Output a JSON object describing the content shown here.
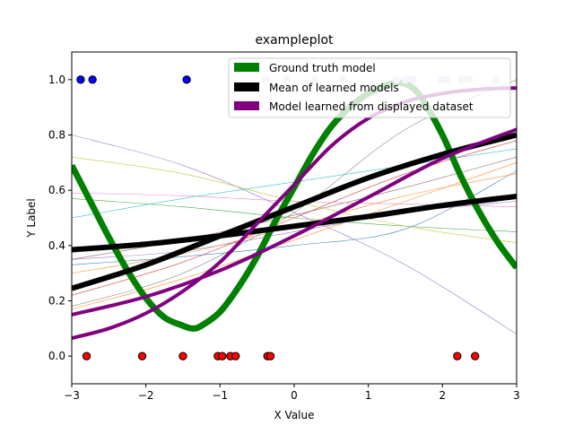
{
  "chart_data": {
    "type": "line",
    "title": "exampleplot",
    "xlabel": "X Value",
    "ylabel": "Y Label",
    "xlim": [
      -3,
      3
    ],
    "ylim": [
      -0.1,
      1.1
    ],
    "xticks": [
      -3,
      -2,
      -1,
      0,
      1,
      2,
      3
    ],
    "yticks": [
      0.0,
      0.2,
      0.4,
      0.6,
      0.8,
      1.0
    ],
    "xtick_labels": [
      "−3",
      "−2",
      "−1",
      "0",
      "1",
      "2",
      "3"
    ],
    "ytick_labels": [
      "0.0",
      "0.2",
      "0.4",
      "0.6",
      "0.8",
      "1.0"
    ],
    "grid": false,
    "legend": {
      "placement": "upper-right",
      "entries": [
        {
          "label": "Ground truth model",
          "color": "#008000"
        },
        {
          "label": "Mean of learned models",
          "color": "#000000"
        },
        {
          "label": "Model learned from displayed dataset",
          "color": "#800080"
        }
      ]
    },
    "ground_truth": {
      "color": "#008000",
      "x": [
        -3.0,
        -2.75,
        -2.5,
        -2.25,
        -2.0,
        -1.75,
        -1.5,
        -1.37,
        -1.25,
        -1.0,
        -0.75,
        -0.5,
        -0.25,
        0.0,
        0.25,
        0.5,
        0.75,
        1.0,
        1.25,
        1.42,
        1.6,
        1.75,
        2.0,
        2.25,
        2.5,
        2.75,
        3.0
      ],
      "y": [
        0.69,
        0.56,
        0.43,
        0.31,
        0.21,
        0.14,
        0.11,
        0.1,
        0.11,
        0.16,
        0.25,
        0.36,
        0.49,
        0.61,
        0.73,
        0.83,
        0.9,
        0.95,
        0.98,
        0.99,
        0.97,
        0.92,
        0.8,
        0.65,
        0.52,
        0.41,
        0.32
      ]
    },
    "mean_models": {
      "color": "#000000",
      "curves": [
        {
          "x": [
            -3,
            -2,
            -1,
            0,
            1,
            2,
            3
          ],
          "y": [
            0.245,
            0.33,
            0.435,
            0.54,
            0.645,
            0.73,
            0.8
          ]
        },
        {
          "x": [
            -3,
            -2,
            -1,
            0,
            1,
            2,
            3
          ],
          "y": [
            0.385,
            0.405,
            0.435,
            0.47,
            0.505,
            0.545,
            0.578
          ]
        }
      ]
    },
    "displayed_model": {
      "color": "#800080",
      "curves": [
        {
          "x": [
            -3,
            -2.5,
            -2,
            -1.5,
            -1,
            -0.5,
            0,
            0.5,
            1,
            1.5,
            2,
            2.5,
            3
          ],
          "y": [
            0.065,
            0.1,
            0.155,
            0.235,
            0.34,
            0.48,
            0.62,
            0.76,
            0.86,
            0.92,
            0.95,
            0.965,
            0.97
          ]
        },
        {
          "x": [
            -3,
            -2,
            -1,
            0,
            1,
            2,
            3
          ],
          "y": [
            0.15,
            0.215,
            0.31,
            0.435,
            0.575,
            0.715,
            0.82
          ]
        }
      ]
    },
    "background_models": [
      {
        "color": "#1f77b4",
        "x": [
          -3,
          -1.5,
          0,
          1.5,
          3
        ],
        "y": [
          0.33,
          0.36,
          0.4,
          0.46,
          0.67
        ]
      },
      {
        "color": "#ff7f0e",
        "x": [
          -3,
          -1.5,
          0,
          1.5,
          3
        ],
        "y": [
          0.17,
          0.28,
          0.42,
          0.56,
          0.7
        ]
      },
      {
        "color": "#2ca02c",
        "x": [
          -3,
          -1.5,
          0,
          1.5,
          3
        ],
        "y": [
          0.57,
          0.54,
          0.5,
          0.47,
          0.45
        ]
      },
      {
        "color": "#d62728",
        "x": [
          -3,
          -1.5,
          0,
          1.5,
          3
        ],
        "y": [
          0.22,
          0.34,
          0.5,
          0.66,
          0.78
        ]
      },
      {
        "color": "#9467bd",
        "x": [
          -3,
          -1.5,
          0,
          1.5,
          3
        ],
        "y": [
          0.8,
          0.69,
          0.52,
          0.33,
          0.08
        ]
      },
      {
        "color": "#8c564b",
        "x": [
          -3,
          -1.5,
          0,
          1.5,
          3
        ],
        "y": [
          0.35,
          0.42,
          0.51,
          0.61,
          0.72
        ]
      },
      {
        "color": "#e377c2",
        "x": [
          -3,
          -1.5,
          0,
          1.5,
          3
        ],
        "y": [
          0.59,
          0.58,
          0.56,
          0.55,
          0.54
        ]
      },
      {
        "color": "#7f7f7f",
        "x": [
          -3,
          -1.5,
          0,
          1.5,
          3
        ],
        "y": [
          0.18,
          0.3,
          0.52,
          0.82,
          1.0
        ]
      },
      {
        "color": "#bcbd22",
        "x": [
          -3,
          -1.5,
          0,
          1.5,
          3
        ],
        "y": [
          0.72,
          0.66,
          0.56,
          0.47,
          0.41
        ]
      },
      {
        "color": "#17becf",
        "x": [
          -3,
          -1.5,
          0,
          1.5,
          3
        ],
        "y": [
          0.5,
          0.57,
          0.63,
          0.69,
          0.75
        ]
      },
      {
        "color": "#9467bd",
        "x": [
          -3,
          -1.5,
          0,
          1.5,
          3
        ],
        "y": [
          0.35,
          0.38,
          0.45,
          0.52,
          0.56
        ]
      },
      {
        "color": "#ff7f0e",
        "x": [
          -3,
          -1.5,
          0,
          1.5,
          3
        ],
        "y": [
          0.3,
          0.37,
          0.47,
          0.58,
          0.66
        ]
      }
    ],
    "dataset_points_label0": {
      "color": "#ff0000",
      "x": [
        -2.8,
        -2.05,
        -1.5,
        -1.03,
        -0.97,
        -0.86,
        -0.79,
        -0.36,
        -0.32,
        2.2,
        2.44
      ],
      "y": [
        0,
        0,
        0,
        0,
        0,
        0,
        0,
        0,
        0,
        0,
        0
      ]
    },
    "dataset_points_label1": {
      "color": "#0000ff",
      "x": [
        -2.88,
        -2.72,
        -1.45
      ],
      "y": [
        1,
        1,
        1
      ]
    },
    "other_points_label1": {
      "color": "#ccccee",
      "x": [
        -0.38,
        -0.1,
        0.28,
        0.66,
        1.38,
        1.5,
        1.6,
        1.98,
        2.06,
        2.26,
        2.36,
        2.72
      ],
      "y": [
        1,
        1,
        1,
        1,
        1,
        1,
        1,
        1,
        1,
        1,
        1,
        1
      ]
    }
  }
}
